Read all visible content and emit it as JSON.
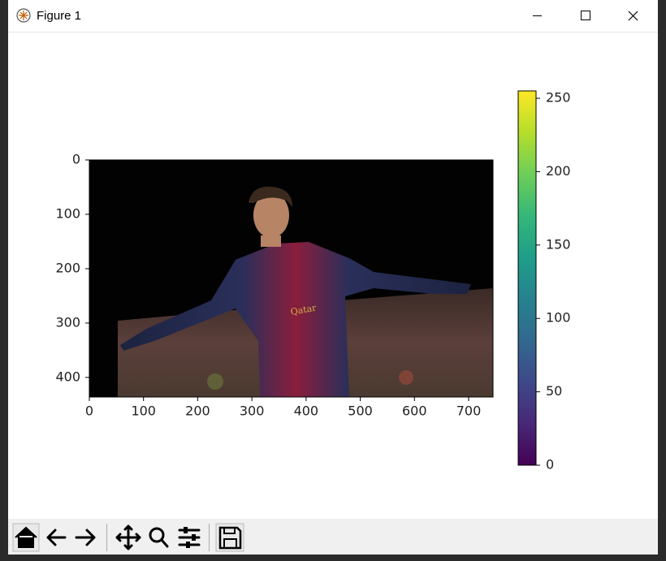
{
  "window": {
    "title": "Figure 1"
  },
  "chart_data": {
    "type": "image",
    "xlim": [
      0,
      745
    ],
    "xticks": [
      0,
      100,
      200,
      300,
      400,
      500,
      600,
      700
    ],
    "ylim": [
      436,
      0
    ],
    "yticks": [
      0,
      100,
      200,
      300,
      400
    ],
    "colorbar": {
      "colormap": "viridis",
      "lim": [
        0,
        255
      ],
      "ticks": [
        0,
        50,
        100,
        150,
        200,
        250
      ]
    }
  }
}
